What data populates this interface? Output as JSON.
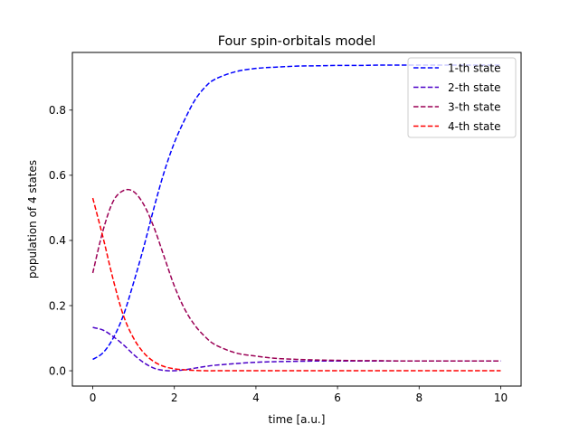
{
  "chart_data": {
    "type": "line",
    "title": "Four spin-orbitals model",
    "xlabel": "time [a.u.]",
    "ylabel": "population of 4 states",
    "xlim": [
      -0.5,
      10.5
    ],
    "ylim": [
      -0.047,
      0.977
    ],
    "xticks": [
      0,
      2,
      4,
      6,
      8,
      10
    ],
    "yticks": [
      0.0,
      0.2,
      0.4,
      0.6,
      0.8
    ],
    "xtick_labels": [
      "0",
      "2",
      "4",
      "6",
      "8",
      "10"
    ],
    "ytick_labels": [
      "0.0",
      "0.2",
      "0.4",
      "0.6",
      "0.8"
    ],
    "grid": false,
    "legend_position": "top-right",
    "line_style": "dashed",
    "x": [
      0,
      0.25,
      0.5,
      0.75,
      1,
      1.25,
      1.5,
      1.75,
      2,
      2.25,
      2.5,
      2.75,
      3,
      3.5,
      4,
      4.5,
      5,
      5.5,
      6,
      6.5,
      7,
      7.5,
      8,
      8.5,
      9,
      9.5,
      10
    ],
    "series": [
      {
        "name": "1-th state",
        "color": "#0000ff",
        "values": [
          0.035,
          0.055,
          0.1,
          0.17,
          0.27,
          0.38,
          0.5,
          0.61,
          0.7,
          0.77,
          0.83,
          0.87,
          0.895,
          0.918,
          0.928,
          0.932,
          0.935,
          0.936,
          0.937,
          0.937,
          0.938,
          0.938,
          0.938,
          0.938,
          0.938,
          0.938,
          0.938
        ]
      },
      {
        "name": "2-th state",
        "color": "#4b00c8",
        "values": [
          0.133,
          0.125,
          0.105,
          0.08,
          0.05,
          0.025,
          0.008,
          0.001,
          0.0,
          0.003,
          0.008,
          0.013,
          0.017,
          0.022,
          0.026,
          0.028,
          0.029,
          0.03,
          0.03,
          0.03,
          0.03,
          0.03,
          0.03,
          0.03,
          0.03,
          0.03,
          0.03
        ]
      },
      {
        "name": "3-th state",
        "color": "#9b0055",
        "values": [
          0.3,
          0.43,
          0.52,
          0.553,
          0.55,
          0.51,
          0.44,
          0.35,
          0.26,
          0.19,
          0.14,
          0.105,
          0.08,
          0.055,
          0.045,
          0.038,
          0.035,
          0.033,
          0.032,
          0.031,
          0.031,
          0.03,
          0.03,
          0.03,
          0.03,
          0.03,
          0.03
        ]
      },
      {
        "name": "4-th state",
        "color": "#ff0000",
        "values": [
          0.53,
          0.41,
          0.28,
          0.17,
          0.1,
          0.055,
          0.028,
          0.013,
          0.006,
          0.003,
          0.001,
          0.0,
          0.0,
          0.0,
          0.0,
          0.0,
          0.0,
          0.0,
          0.0,
          0.0,
          0.0,
          0.0,
          0.0,
          0.0,
          0.0,
          0.0,
          0.0
        ]
      }
    ]
  }
}
